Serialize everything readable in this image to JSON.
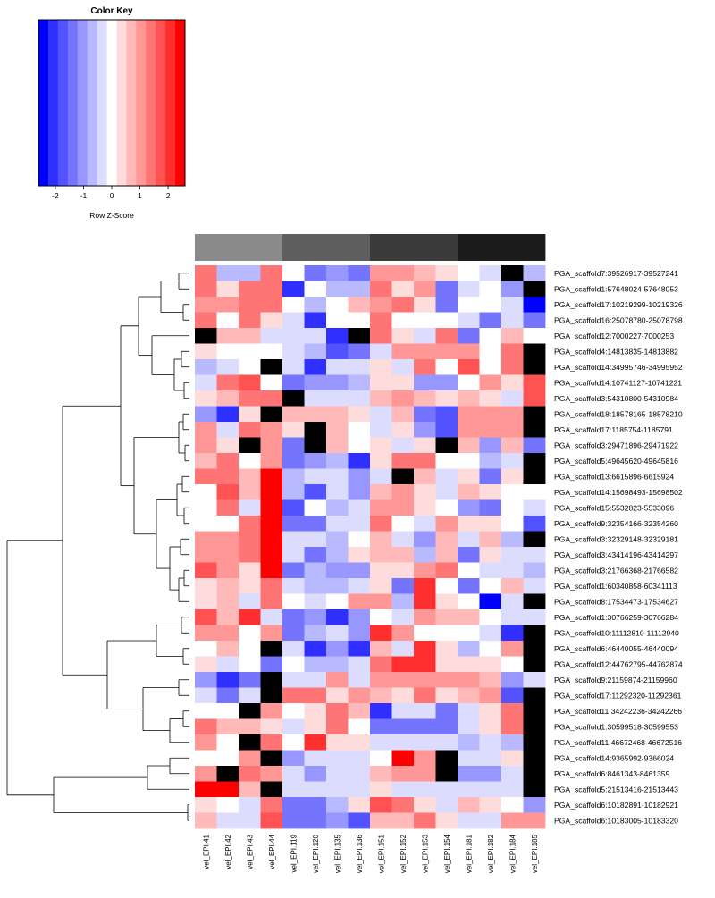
{
  "chart_data": {
    "type": "heatmap",
    "key": {
      "title": "Color Key",
      "xlabel": "Row Z-Score",
      "ticks": [
        -2,
        -1,
        0,
        1,
        2
      ],
      "range": [
        -2.6,
        2.6
      ],
      "colors": [
        "#0000ff",
        "#2f2fff",
        "#5252ff",
        "#7474ff",
        "#9797ff",
        "#b9b9ff",
        "#dcdcff",
        "#ffffff",
        "#ffdcdc",
        "#ffb9b9",
        "#ff9797",
        "#ff7474",
        "#ff5252",
        "#ff2f2f",
        "#ff0000"
      ]
    },
    "na_color": "#000000",
    "groups": [
      {
        "color": "#8a8a8a"
      },
      {
        "color": "#5e5e5e"
      },
      {
        "color": "#3a3a3a"
      },
      {
        "color": "#1c1c1c"
      }
    ],
    "columns": [
      "vel_EPI.41",
      "vel_EPI.42",
      "vel_EPI.43",
      "vel_EPI.44",
      "vel_EPI.119",
      "vel_EPI.120",
      "vel_EPI.135",
      "vel_EPI.136",
      "vel_EPI.151",
      "vel_EPI.152",
      "vel_EPI.153",
      "vel_EPI.154",
      "vel_EPI.181",
      "vel_EPI.182",
      "vel_EPI.184",
      "vel_EPI.185"
    ],
    "rows": [
      {
        "label": "PGA_scaffold7:39526917-39527241",
        "values": [
          1.5,
          -0.8,
          -0.8,
          1.5,
          0,
          -1.5,
          -1,
          -1.5,
          1,
          1,
          0.8,
          0.3,
          0,
          -0.5,
          null,
          -0.8
        ]
      },
      {
        "label": "PGA_scaffold1:57648024-57648053",
        "values": [
          1.5,
          0.3,
          1.3,
          1.3,
          -2,
          0,
          -0.8,
          -0.8,
          1.5,
          0.3,
          1,
          -1.5,
          -0.3,
          0,
          -1,
          null
        ]
      },
      {
        "label": "PGA_scaffold17:10219299-10219326",
        "values": [
          1.2,
          1.2,
          1.5,
          1.5,
          0,
          -0.8,
          0,
          0.8,
          1,
          1.3,
          0.3,
          -1.5,
          0,
          0,
          -0.5,
          -2.5
        ]
      },
      {
        "label": "PGA_scaffold16:25078780-25078798",
        "values": [
          1.5,
          0,
          1.5,
          0.5,
          -0.3,
          -2,
          0,
          0,
          1.5,
          0,
          0,
          0,
          -0.5,
          -1.5,
          -0.5,
          -1.5
        ]
      },
      {
        "label": "PGA_scaffold12:7000227-7000253",
        "values": [
          null,
          0.8,
          0.8,
          -0.5,
          -0.5,
          -0.5,
          -2.2,
          null,
          1.5,
          0.5,
          -0.3,
          1.5,
          -1.5,
          0,
          0.8,
          0
        ]
      },
      {
        "label": "PGA_scaffold4:14813835-14813882",
        "values": [
          0.3,
          0,
          0,
          0,
          -0.3,
          -0.8,
          -1.8,
          -1.5,
          -0.5,
          1,
          1,
          1,
          1,
          0,
          1.5,
          null
        ]
      },
      {
        "label": "PGA_scaffold14:34995746-34995952",
        "values": [
          -0.8,
          -0.3,
          0,
          null,
          -0.3,
          -2.2,
          -0.5,
          -0.5,
          0.3,
          -0.3,
          1.5,
          0,
          1.8,
          0,
          1.5,
          null
        ]
      },
      {
        "label": "PGA_scaffold14:10741127-10741221",
        "values": [
          -0.3,
          1.5,
          1.8,
          0,
          -1.5,
          -1,
          -1,
          -0.8,
          0.3,
          0.3,
          -1,
          -1,
          0,
          1,
          0.3,
          1.8
        ]
      },
      {
        "label": "PGA_scaffold3:54310800-54310984",
        "values": [
          0.3,
          0.8,
          1.3,
          1.3,
          null,
          -0.5,
          -0.5,
          -0.3,
          0.8,
          1.2,
          0.8,
          0.3,
          0.8,
          0.3,
          -0.3,
          1.8
        ]
      },
      {
        "label": "PGA_scaffold18:18578165-18578210",
        "values": [
          -1,
          -2,
          0.3,
          null,
          0.8,
          0.8,
          0.8,
          0.3,
          -0.3,
          0.8,
          -1.5,
          -1.8,
          1,
          1,
          1,
          null
        ]
      },
      {
        "label": "PGA_scaffold17:1185754-1185791",
        "values": [
          1.2,
          -0.5,
          1.5,
          1.2,
          0.3,
          null,
          0.8,
          0,
          -0.5,
          0.3,
          -1,
          -1.8,
          1,
          1,
          1,
          null
        ]
      },
      {
        "label": "PGA_scaffold3:29471896-29471922",
        "values": [
          1.2,
          0.3,
          null,
          1.2,
          -1.5,
          null,
          0.8,
          0,
          0.3,
          -0.3,
          0.3,
          null,
          0.8,
          -1,
          0.8,
          -1.5
        ]
      },
      {
        "label": "PGA_scaffold5:49645620-49645816",
        "values": [
          0.8,
          1.5,
          0,
          1.2,
          -1.5,
          -1,
          -0.8,
          -2,
          0.3,
          1.3,
          1.3,
          0,
          0,
          -0.8,
          -0.3,
          null
        ]
      },
      {
        "label": "PGA_scaffold13:6615896-6615924",
        "values": [
          1.5,
          1.3,
          0.8,
          2.5,
          -0.8,
          -0.5,
          -0.3,
          -1,
          -0.3,
          null,
          0.8,
          -0.5,
          0.3,
          -1.5,
          0.3,
          null
        ]
      },
      {
        "label": "PGA_scaffold14:15698493-15698502",
        "values": [
          0,
          1.8,
          0.8,
          2.5,
          -0.8,
          -1.8,
          -0.5,
          -1,
          0.8,
          1,
          0.3,
          -0.5,
          0.8,
          0.3,
          0,
          0
        ]
      },
      {
        "label": "PGA_scaffold15:5532823-5533096",
        "values": [
          0,
          1.3,
          -0.3,
          2.5,
          -1.8,
          0,
          -0.8,
          -0.3,
          1,
          1,
          0.3,
          0,
          -1,
          -1.5,
          0,
          -0.3
        ]
      },
      {
        "label": "PGA_scaffold9:32354166-32354260",
        "values": [
          0,
          0,
          1.3,
          2.5,
          -1.5,
          -1.5,
          -0.3,
          -0.3,
          1.3,
          0,
          -0.5,
          1,
          0.5,
          0.5,
          0,
          -1.8
        ]
      },
      {
        "label": "PGA_scaffold3:32329148-32329181",
        "values": [
          1.2,
          1.2,
          1.5,
          2.5,
          -0.5,
          -0.5,
          -0.8,
          0,
          0.8,
          -0.5,
          -1,
          0.8,
          -0.3,
          0.8,
          -0.8,
          null
        ]
      },
      {
        "label": "PGA_scaffold3:43414196-43414297",
        "values": [
          1.2,
          1,
          1.3,
          2.3,
          -0.5,
          -1.5,
          -0.8,
          0.3,
          0.8,
          0.8,
          -0.8,
          0.8,
          -1.5,
          0.5,
          -0.3,
          -0.5
        ]
      },
      {
        "label": "PGA_scaffold3:21766368-21766582",
        "values": [
          1.8,
          1.2,
          0.3,
          2.3,
          -1.5,
          -0.8,
          -1,
          -1,
          0.5,
          0.3,
          1,
          1.5,
          0,
          -0.5,
          -0.3,
          -0.8
        ]
      },
      {
        "label": "PGA_scaffold1:60340858-60341113",
        "values": [
          0.3,
          0.8,
          0.3,
          1.5,
          -0.5,
          -0.8,
          -0.8,
          -0.5,
          0.3,
          -1.5,
          2,
          0,
          -1.5,
          0,
          0.8,
          -0.3
        ]
      },
      {
        "label": "PGA_scaffold8:17534473-17534627",
        "values": [
          0.3,
          0.8,
          -0.3,
          1.5,
          0,
          -0.3,
          0,
          1,
          1,
          -0.8,
          2,
          0.3,
          0,
          -2.5,
          -0.5,
          null
        ]
      },
      {
        "label": "PGA_scaffold1:30766259-30766284",
        "values": [
          1.8,
          0.8,
          2,
          -0.3,
          -1.5,
          -1,
          -2,
          -1,
          0,
          -0.3,
          1.2,
          0.8,
          0.8,
          0,
          -0.5,
          -0.5
        ]
      },
      {
        "label": "PGA_scaffold10:11112810-11112940",
        "values": [
          1.2,
          1.2,
          0,
          1.2,
          -1.5,
          -0.8,
          -0.5,
          -1,
          2,
          1,
          0,
          0,
          0,
          -0.3,
          -2.2,
          null
        ]
      },
      {
        "label": "PGA_scaffold6:46440055-46440094",
        "values": [
          0,
          0.8,
          0,
          null,
          -0.5,
          -2,
          -1,
          -2,
          0.8,
          -0.3,
          2,
          0.3,
          -0.8,
          0,
          1.2,
          null
        ]
      },
      {
        "label": "PGA_scaffold12:44762795-44762874",
        "values": [
          0.3,
          -0.3,
          0,
          -1.5,
          0,
          -0.8,
          -0.8,
          -0.5,
          1.5,
          2,
          2,
          0.3,
          0.3,
          0.3,
          0,
          null
        ]
      },
      {
        "label": "PGA_scaffold9:21159874-21159960",
        "values": [
          -1,
          -2,
          -1.5,
          null,
          -0.3,
          -0.3,
          1.2,
          -0.3,
          1.2,
          1.2,
          1,
          1,
          1,
          0.8,
          -1,
          -0.3
        ]
      },
      {
        "label": "PGA_scaffold17:11292320-11292361",
        "values": [
          -0.3,
          -1.5,
          -0.5,
          null,
          1.5,
          1.5,
          0.3,
          1,
          0.8,
          0.3,
          1.5,
          0.3,
          0.8,
          1,
          -1.8,
          null
        ]
      },
      {
        "label": "PGA_scaffold11:34242236-34242266",
        "values": [
          0,
          0,
          null,
          1,
          0,
          0.3,
          1.5,
          0.8,
          -2,
          -0.5,
          -0.5,
          -1.5,
          -0.5,
          0.3,
          1.3,
          null
        ]
      },
      {
        "label": "PGA_scaffold1:30599518-30599553",
        "values": [
          1.5,
          0.8,
          0.8,
          0.3,
          -0.3,
          0.3,
          1.5,
          0,
          -1.5,
          -1.5,
          -1.5,
          -1.5,
          -0.5,
          0.3,
          1.3,
          null
        ]
      },
      {
        "label": "PGA_scaffold11:46672468-46672516",
        "values": [
          1.2,
          0,
          null,
          1.5,
          0,
          2.2,
          0.3,
          0.3,
          -0.5,
          -0.5,
          -0.5,
          -0.5,
          -0.8,
          -0.3,
          -0.8,
          null
        ]
      },
      {
        "label": "PGA_scaffold14:9365992-9366024",
        "values": [
          0,
          0,
          1.2,
          null,
          -1,
          -0.5,
          -0.5,
          -0.3,
          0,
          2.3,
          1.2,
          null,
          -0.3,
          -0.3,
          0.3,
          null
        ]
      },
      {
        "label": "PGA_scaffold6:8461343-8461359",
        "values": [
          1.2,
          null,
          1.5,
          1.2,
          -0.5,
          -1,
          -0.3,
          -0.5,
          0.8,
          1.2,
          1.2,
          null,
          -1,
          -1,
          -0.5,
          null
        ]
      },
      {
        "label": "PGA_scaffold5:21513416-21513443",
        "values": [
          2.5,
          2.5,
          0.8,
          null,
          -0.5,
          -0.5,
          -0.5,
          -0.3,
          0.3,
          -0.5,
          -0.5,
          -0.5,
          -0.5,
          -0.5,
          -0.5,
          null
        ]
      },
      {
        "label": "PGA_scaffold6:10182891-10182921",
        "values": [
          0.3,
          0,
          -0.5,
          1.5,
          -1.5,
          -1.5,
          -0.8,
          0.3,
          1.8,
          1.5,
          0.3,
          -0.5,
          0.8,
          0.3,
          0,
          -1
        ]
      },
      {
        "label": "PGA_scaffold6:10183005-10183320",
        "values": [
          0.8,
          -0.3,
          -0.5,
          1.8,
          -1.5,
          -1.5,
          -1,
          -1.8,
          0.8,
          0.8,
          1.5,
          0.3,
          -0.3,
          -0.3,
          1,
          1
        ]
      }
    ]
  }
}
